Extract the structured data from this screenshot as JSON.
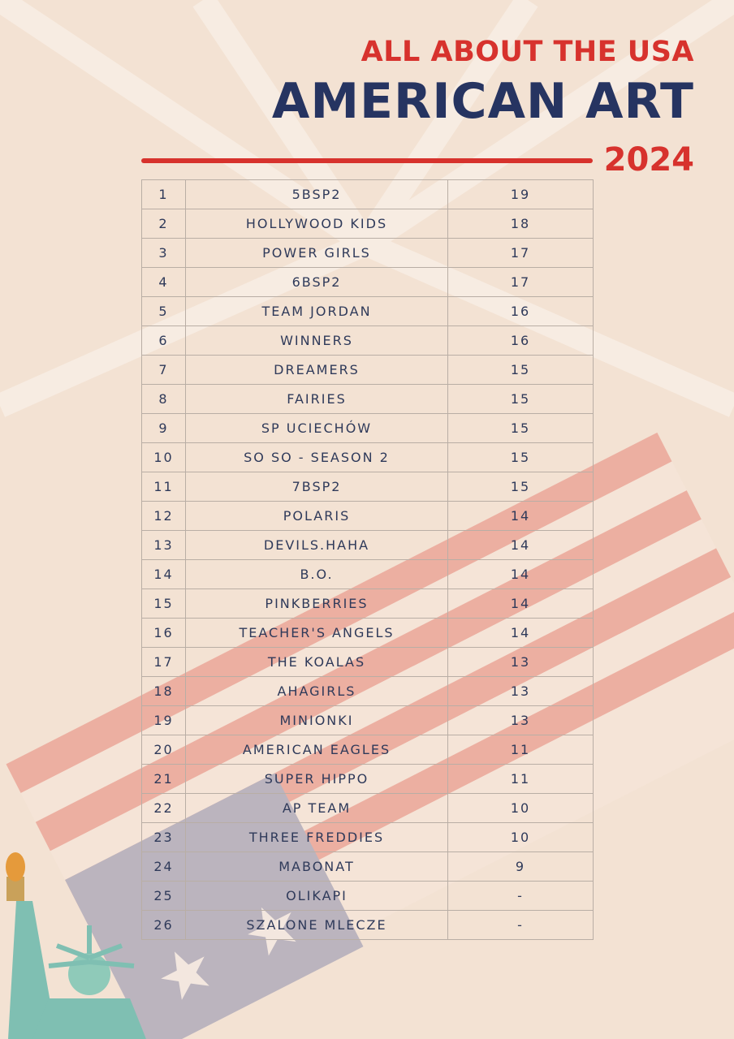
{
  "header": {
    "kicker": "ALL ABOUT THE USA",
    "title": "AMERICAN ART",
    "year": "2024"
  },
  "table": {
    "rows": [
      [
        1,
        "5BSP2",
        19
      ],
      [
        2,
        "HOLLYWOOD KIDS",
        18
      ],
      [
        3,
        "POWER GIRLS",
        17
      ],
      [
        4,
        "6BSP2",
        17
      ],
      [
        5,
        "TEAM JORDAN",
        16
      ],
      [
        6,
        "WINNERS",
        16
      ],
      [
        7,
        "DREAMERS",
        15
      ],
      [
        8,
        "FAIRIES",
        15
      ],
      [
        9,
        "SP UCIECHÓW",
        15
      ],
      [
        10,
        "SO SO - SEASON 2",
        15
      ],
      [
        11,
        "7BSP2",
        15
      ],
      [
        12,
        "POLARIS",
        14
      ],
      [
        13,
        "DEVILS.HAHA",
        14
      ],
      [
        14,
        "B.O.",
        14
      ],
      [
        15,
        "PINKBERRIES",
        14
      ],
      [
        16,
        "TEACHER'S ANGELS",
        14
      ],
      [
        17,
        "THE KOALAS",
        13
      ],
      [
        18,
        "AHAGIRLS",
        13
      ],
      [
        19,
        "MINIONKI",
        13
      ],
      [
        20,
        "AMERICAN EAGLES",
        11
      ],
      [
        21,
        "SUPER HIPPO",
        11
      ],
      [
        22,
        "AP TEAM",
        10
      ],
      [
        23,
        "THREE FREDDIES",
        10
      ],
      [
        24,
        "MABONAT",
        9
      ],
      [
        25,
        "OLIKAPI",
        "-"
      ],
      [
        26,
        "SZALONE MLECZE",
        "-"
      ]
    ]
  }
}
